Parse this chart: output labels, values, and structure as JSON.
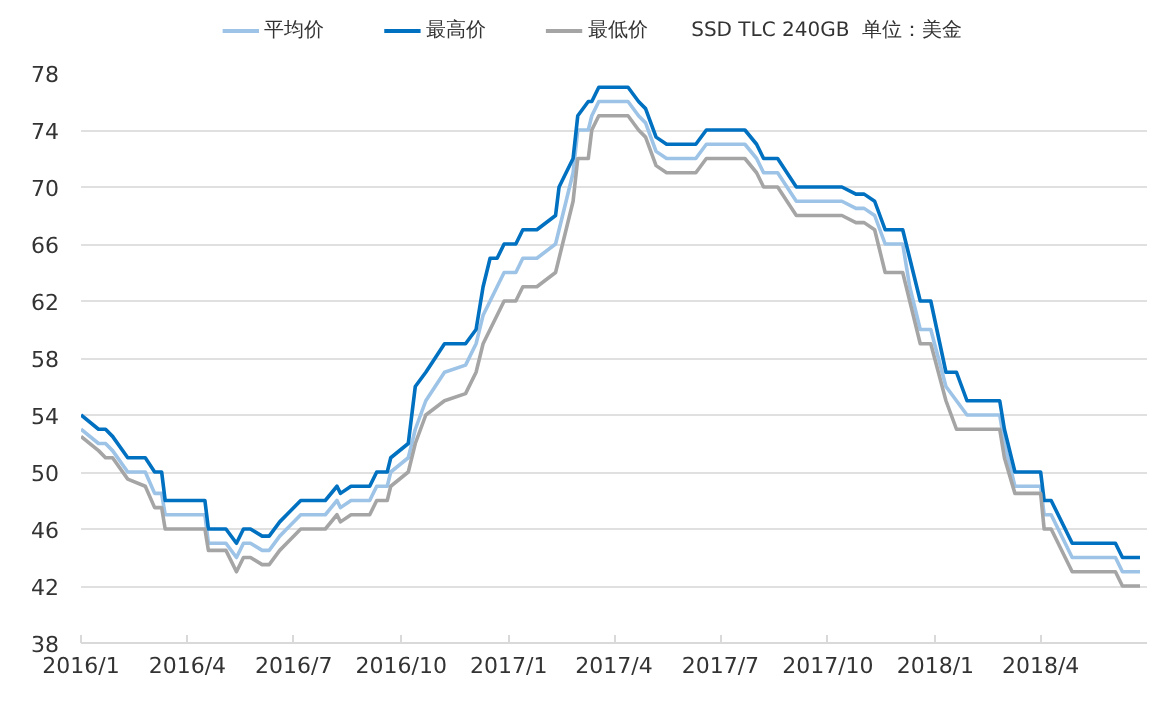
{
  "chart_data": {
    "type": "line",
    "x": [
      "2016-01-01",
      "2016-01-16",
      "2016-01-22",
      "2016-01-28",
      "2016-02-10",
      "2016-02-25",
      "2016-03-04",
      "2016-03-10",
      "2016-03-13",
      "2016-04-16",
      "2016-04-19",
      "2016-05-04",
      "2016-05-13",
      "2016-05-19",
      "2016-05-25",
      "2016-06-04",
      "2016-06-10",
      "2016-06-19",
      "2016-06-25",
      "2016-07-07",
      "2016-07-28",
      "2016-08-07",
      "2016-08-10",
      "2016-08-19",
      "2016-09-04",
      "2016-09-10",
      "2016-09-19",
      "2016-09-22",
      "2016-10-07",
      "2016-10-13",
      "2016-10-22",
      "2016-11-07",
      "2016-11-25",
      "2016-12-04",
      "2016-12-10",
      "2016-12-16",
      "2016-12-22",
      "2016-12-28",
      "2017-01-07",
      "2017-01-13",
      "2017-01-25",
      "2017-02-10",
      "2017-02-13",
      "2017-02-19",
      "2017-02-25",
      "2017-03-01",
      "2017-03-10",
      "2017-03-13",
      "2017-03-19",
      "2017-04-13",
      "2017-04-22",
      "2017-04-28",
      "2017-05-07",
      "2017-05-16",
      "2017-06-10",
      "2017-06-19",
      "2017-07-22",
      "2017-08-01",
      "2017-08-07",
      "2017-08-19",
      "2017-09-04",
      "2017-10-13",
      "2017-10-25",
      "2017-11-01",
      "2017-11-10",
      "2017-11-19",
      "2017-12-04",
      "2017-12-10",
      "2017-12-19",
      "2017-12-28",
      "2018-01-10",
      "2018-01-19",
      "2018-01-28",
      "2018-02-01",
      "2018-02-25",
      "2018-03-01",
      "2018-03-10",
      "2018-04-01",
      "2018-04-04",
      "2018-04-10",
      "2018-04-28",
      "2018-05-04",
      "2018-06-04",
      "2018-06-10",
      "2018-06-25"
    ],
    "series": [
      {
        "name": "平均价",
        "color": "#9dc3e6",
        "values": [
          53,
          52,
          52,
          51.5,
          50,
          50,
          48.5,
          48.5,
          47,
          47,
          45,
          45,
          44,
          45,
          45,
          44.5,
          44.5,
          45.5,
          46,
          47,
          47,
          48,
          47.5,
          48,
          48,
          49,
          49,
          50,
          51,
          53,
          55,
          57,
          57.5,
          59,
          61,
          62,
          63,
          64,
          64,
          65,
          65,
          66,
          67,
          69,
          71,
          74,
          74,
          75,
          76,
          76,
          75,
          74.5,
          72.5,
          72,
          72,
          73,
          73,
          72,
          71,
          71,
          69,
          69,
          68.5,
          68.5,
          68,
          66,
          66,
          63,
          60,
          60,
          56,
          55,
          54,
          54,
          54,
          52,
          49,
          49,
          47,
          47,
          44,
          44,
          44,
          43,
          43
        ]
      },
      {
        "name": "最高价",
        "color": "#0070c0",
        "values": [
          54,
          53,
          53,
          52.5,
          51,
          51,
          50,
          50,
          48,
          48,
          46,
          46,
          45,
          46,
          46,
          45.5,
          45.5,
          46.5,
          47,
          48,
          48,
          49,
          48.5,
          49,
          49,
          50,
          50,
          51,
          52,
          56,
          57,
          59,
          59,
          60,
          63,
          65,
          65,
          66,
          66,
          67,
          67,
          68,
          70,
          71,
          72,
          75,
          76,
          76,
          77,
          77,
          76,
          75.5,
          73.5,
          73,
          73,
          74,
          74,
          73,
          72,
          72,
          70,
          70,
          69.5,
          69.5,
          69,
          67,
          67,
          65,
          62,
          62,
          57,
          57,
          55,
          55,
          55,
          53,
          50,
          50,
          48,
          48,
          45,
          45,
          45,
          44,
          44
        ]
      },
      {
        "name": "最低价",
        "color": "#a5a5a5",
        "values": [
          52.5,
          51.5,
          51,
          51,
          49.5,
          49,
          47.5,
          47.5,
          46,
          46,
          44.5,
          44.5,
          43,
          44,
          44,
          43.5,
          43.5,
          44.5,
          45,
          46,
          46,
          47,
          46.5,
          47,
          47,
          48,
          48,
          49,
          50,
          52,
          54,
          55,
          55.5,
          57,
          59,
          60,
          61,
          62,
          62,
          63,
          63,
          64,
          65,
          67,
          69,
          72,
          72,
          74,
          75,
          75,
          74,
          73.5,
          71.5,
          71,
          71,
          72,
          72,
          71,
          70,
          70,
          68,
          68,
          67.5,
          67.5,
          67,
          64,
          64,
          62,
          59,
          59,
          55,
          53,
          53,
          53,
          53,
          51,
          48.5,
          48.5,
          46,
          46,
          43,
          43,
          43,
          42,
          42
        ]
      }
    ],
    "xlim": [
      "2016-01-01",
      "2018-07-01"
    ],
    "xticks": [
      {
        "value": "2016-01-01",
        "label": "2016/1"
      },
      {
        "value": "2016-04-01",
        "label": "2016/4"
      },
      {
        "value": "2016-07-01",
        "label": "2016/7"
      },
      {
        "value": "2016-10-01",
        "label": "2016/10"
      },
      {
        "value": "2017-01-01",
        "label": "2017/1"
      },
      {
        "value": "2017-04-01",
        "label": "2017/4"
      },
      {
        "value": "2017-07-01",
        "label": "2017/7"
      },
      {
        "value": "2017-10-01",
        "label": "2017/10"
      },
      {
        "value": "2018-01-01",
        "label": "2018/1"
      },
      {
        "value": "2018-04-01",
        "label": "2018/4"
      }
    ],
    "ylim": [
      38,
      78
    ],
    "yticks": [
      38,
      42,
      46,
      50,
      54,
      58,
      62,
      66,
      70,
      74,
      78
    ],
    "grid": "y",
    "legend": "top",
    "marker": "none",
    "line_style": "solid",
    "annotations": [
      "SSD TLC 240GB",
      "单位：美金"
    ]
  }
}
